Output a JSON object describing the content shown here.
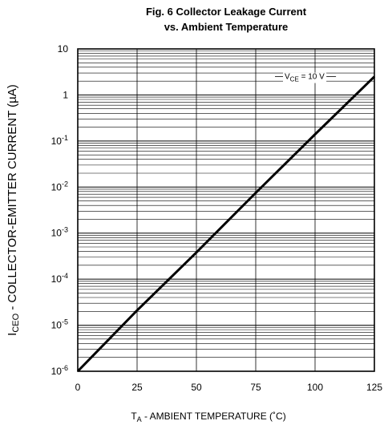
{
  "chart_data": {
    "type": "line",
    "title": "Fig. 6  Collector Leakage Current",
    "subtitle": "vs. Ambient Temperature",
    "xlabel_prefix": "T",
    "xlabel_sub": "A",
    "xlabel_rest": " - AMBIENT TEMPERATURE (˚C)",
    "ylabel_prefix": "I",
    "ylabel_sub": "CEO",
    "ylabel_rest": " -  COLLECTOR-EMITTER CURRENT (µA)",
    "x_ticks": [
      0,
      25,
      50,
      75,
      100,
      125
    ],
    "y_ticks": [
      {
        "value": 10,
        "base": "10",
        "exp": ""
      },
      {
        "value": 1,
        "base": "1",
        "exp": ""
      },
      {
        "value": 0.1,
        "base": "10",
        "exp": "-1"
      },
      {
        "value": 0.01,
        "base": "10",
        "exp": "-2"
      },
      {
        "value": 0.001,
        "base": "10",
        "exp": "-3"
      },
      {
        "value": 0.0001,
        "base": "10",
        "exp": "-4"
      },
      {
        "value": 1e-05,
        "base": "10",
        "exp": "-5"
      },
      {
        "value": 1e-06,
        "base": "10",
        "exp": "-6"
      }
    ],
    "xlim": [
      0,
      125
    ],
    "ylim": [
      1e-06,
      10
    ],
    "y_scale": "log",
    "grid": true,
    "series": [
      {
        "x": [
          0,
          25,
          50,
          75,
          100,
          125
        ],
        "y": [
          1e-06,
          2.1e-05,
          0.00038,
          0.0075,
          0.14,
          2.5
        ]
      }
    ],
    "annotation_prefix": "V",
    "annotation_sub": "CE",
    "annotation_rest": " = 10 V"
  }
}
